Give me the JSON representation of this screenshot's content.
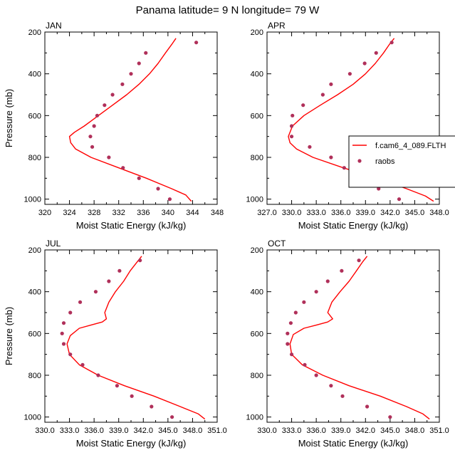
{
  "figure": {
    "title": "Panama  latitude= 9 N longitude= 79 W"
  },
  "colors": {
    "model_line": "#ff0000",
    "obs_marker": "#b0305a"
  },
  "legend": {
    "placement": "right-middle",
    "entries": [
      {
        "label": "f.cam6_4_089.FLTH",
        "kind": "line"
      },
      {
        "label": "raobs",
        "kind": "marker"
      }
    ]
  },
  "chart_data": [
    {
      "type": "line",
      "title": "JAN",
      "xlabel": "Moist Static Energy (kJ/kg)",
      "ylabel": "Pressure (mb)",
      "xlim": [
        320,
        348
      ],
      "ylim": [
        200,
        1025
      ],
      "y_reversed": true,
      "xticks": [
        320,
        322,
        324,
        326,
        328,
        330,
        332,
        334,
        336,
        338,
        340,
        342,
        344,
        346,
        348
      ],
      "xtick_labels": [
        "320",
        "",
        "324",
        "",
        "328",
        "",
        "332",
        "",
        "336",
        "",
        "340",
        "",
        "344",
        "",
        "348"
      ],
      "yticks": [
        200,
        400,
        600,
        800,
        1000
      ],
      "ytick_labels": [
        "200",
        "400",
        "600",
        "800",
        "1000"
      ],
      "series": [
        {
          "kind": "line",
          "points": [
            [
              341.3,
              230
            ],
            [
              340.6,
              260
            ],
            [
              339.6,
              300
            ],
            [
              338.4,
              350
            ],
            [
              337.0,
              400
            ],
            [
              335.3,
              450
            ],
            [
              333.3,
              500
            ],
            [
              331.0,
              550
            ],
            [
              328.7,
              600
            ],
            [
              326.4,
              650
            ],
            [
              324.8,
              680
            ],
            [
              324.0,
              700
            ],
            [
              324.2,
              730
            ],
            [
              325.0,
              760
            ],
            [
              327.5,
              800
            ],
            [
              332.0,
              850
            ],
            [
              336.5,
              900
            ],
            [
              340.6,
              950
            ],
            [
              342.9,
              980
            ],
            [
              343.8,
              1010
            ]
          ]
        },
        {
          "kind": "marker",
          "points": [
            [
              344.6,
              250
            ],
            [
              336.4,
              300
            ],
            [
              335.3,
              350
            ],
            [
              334.0,
              400
            ],
            [
              332.6,
              450
            ],
            [
              331.0,
              500
            ],
            [
              329.7,
              550
            ],
            [
              328.5,
              600
            ],
            [
              328.0,
              650
            ],
            [
              327.4,
              700
            ],
            [
              327.7,
              750
            ],
            [
              330.4,
              800
            ],
            [
              332.7,
              850
            ],
            [
              335.3,
              900
            ],
            [
              338.4,
              950
            ],
            [
              340.3,
              1000
            ]
          ]
        }
      ]
    },
    {
      "type": "line",
      "title": "APR",
      "xlabel": "Moist Static Energy (kJ/kg)",
      "ylabel": "Pressure (mb)",
      "xlim": [
        327,
        348
      ],
      "ylim": [
        200,
        1025
      ],
      "y_reversed": true,
      "xticks": [
        327,
        328.5,
        330,
        331.5,
        333,
        334.5,
        336,
        337.5,
        339,
        340.5,
        342,
        343.5,
        345,
        346.5,
        348
      ],
      "xtick_labels": [
        "327.0",
        "",
        "330.0",
        "",
        "333.0",
        "",
        "336.0",
        "",
        "339.0",
        "",
        "342.0",
        "",
        "345.0",
        "",
        "348.0"
      ],
      "yticks": [
        200,
        400,
        600,
        800,
        1000
      ],
      "ytick_labels": [
        "200",
        "400",
        "600",
        "800",
        "1000"
      ],
      "series": [
        {
          "kind": "line",
          "points": [
            [
              342.5,
              230
            ],
            [
              341.9,
              260
            ],
            [
              341.2,
              300
            ],
            [
              340.2,
              350
            ],
            [
              339.0,
              400
            ],
            [
              337.5,
              450
            ],
            [
              335.6,
              500
            ],
            [
              333.5,
              550
            ],
            [
              331.5,
              600
            ],
            [
              330.1,
              650
            ],
            [
              329.6,
              700
            ],
            [
              329.8,
              730
            ],
            [
              330.6,
              760
            ],
            [
              332.6,
              800
            ],
            [
              336.3,
              850
            ],
            [
              340.4,
              900
            ],
            [
              344.0,
              950
            ],
            [
              346.3,
              985
            ],
            [
              347.3,
              1010
            ]
          ]
        },
        {
          "kind": "marker",
          "points": [
            [
              342.2,
              250
            ],
            [
              340.3,
              300
            ],
            [
              338.9,
              350
            ],
            [
              337.1,
              400
            ],
            [
              334.8,
              450
            ],
            [
              333.8,
              500
            ],
            [
              331.4,
              550
            ],
            [
              330.1,
              600
            ],
            [
              330.0,
              650
            ],
            [
              330.0,
              700
            ],
            [
              332.2,
              750
            ],
            [
              334.8,
              800
            ],
            [
              336.4,
              850
            ],
            [
              338.4,
              900
            ],
            [
              340.6,
              950
            ],
            [
              343.1,
              1000
            ]
          ]
        }
      ]
    },
    {
      "type": "line",
      "title": "JUL",
      "xlabel": "Moist Static Energy (kJ/kg)",
      "ylabel": "Pressure (mb)",
      "xlim": [
        330,
        351
      ],
      "ylim": [
        200,
        1025
      ],
      "y_reversed": true,
      "xticks": [
        330,
        331.5,
        333,
        334.5,
        336,
        337.5,
        339,
        340.5,
        342,
        343.5,
        345,
        346.5,
        348,
        349.5,
        351
      ],
      "xtick_labels": [
        "330.0",
        "",
        "333.0",
        "",
        "336.0",
        "",
        "339.0",
        "",
        "342.0",
        "",
        "345.0",
        "",
        "348.0",
        "",
        "351.0"
      ],
      "yticks": [
        200,
        400,
        600,
        800,
        1000
      ],
      "ytick_labels": [
        "200",
        "400",
        "600",
        "800",
        "1000"
      ],
      "series": [
        {
          "kind": "line",
          "points": [
            [
              341.8,
              230
            ],
            [
              341.2,
              260
            ],
            [
              340.4,
              300
            ],
            [
              339.6,
              350
            ],
            [
              338.6,
              400
            ],
            [
              337.8,
              450
            ],
            [
              337.3,
              500
            ],
            [
              337.5,
              530
            ],
            [
              337.0,
              545
            ],
            [
              335.6,
              560
            ],
            [
              334.2,
              575
            ],
            [
              333.1,
              610
            ],
            [
              332.7,
              650
            ],
            [
              333.0,
              700
            ],
            [
              334.2,
              750
            ],
            [
              336.5,
              800
            ],
            [
              339.7,
              850
            ],
            [
              343.3,
              900
            ],
            [
              346.5,
              950
            ],
            [
              348.7,
              985
            ],
            [
              349.5,
              1010
            ]
          ]
        },
        {
          "kind": "marker",
          "points": [
            [
              341.6,
              250
            ],
            [
              339.1,
              300
            ],
            [
              337.8,
              350
            ],
            [
              336.2,
              400
            ],
            [
              334.3,
              450
            ],
            [
              333.1,
              500
            ],
            [
              332.3,
              550
            ],
            [
              332.1,
              600
            ],
            [
              332.3,
              650
            ],
            [
              333.1,
              700
            ],
            [
              334.6,
              750
            ],
            [
              336.5,
              800
            ],
            [
              338.8,
              850
            ],
            [
              340.6,
              900
            ],
            [
              343.0,
              950
            ],
            [
              345.5,
              1000
            ]
          ]
        }
      ]
    },
    {
      "type": "line",
      "title": "OCT",
      "xlabel": "Moist Static Energy (kJ/kg)",
      "ylabel": "Pressure (mb)",
      "xlim": [
        330,
        351
      ],
      "ylim": [
        200,
        1025
      ],
      "y_reversed": true,
      "xticks": [
        330,
        331.5,
        333,
        334.5,
        336,
        337.5,
        339,
        340.5,
        342,
        343.5,
        345,
        346.5,
        348,
        349.5,
        351
      ],
      "xtick_labels": [
        "330.0",
        "",
        "333.0",
        "",
        "336.0",
        "",
        "339.0",
        "",
        "342.0",
        "",
        "345.0",
        "",
        "348.0",
        "",
        "351.0"
      ],
      "yticks": [
        200,
        400,
        600,
        800,
        1000
      ],
      "ytick_labels": [
        "200",
        "400",
        "600",
        "800",
        "1000"
      ],
      "series": [
        {
          "kind": "line",
          "points": [
            [
              342.2,
              230
            ],
            [
              341.6,
              260
            ],
            [
              340.9,
              300
            ],
            [
              340.0,
              350
            ],
            [
              338.9,
              400
            ],
            [
              337.9,
              450
            ],
            [
              337.4,
              500
            ],
            [
              338.0,
              530
            ],
            [
              337.4,
              545
            ],
            [
              336.0,
              560
            ],
            [
              334.5,
              575
            ],
            [
              333.2,
              605
            ],
            [
              332.8,
              650
            ],
            [
              333.0,
              700
            ],
            [
              334.3,
              750
            ],
            [
              336.8,
              800
            ],
            [
              340.0,
              850
            ],
            [
              343.8,
              900
            ],
            [
              347.0,
              950
            ],
            [
              349.0,
              985
            ],
            [
              349.8,
              1010
            ]
          ]
        },
        {
          "kind": "marker",
          "points": [
            [
              341.2,
              250
            ],
            [
              339.1,
              300
            ],
            [
              337.4,
              350
            ],
            [
              336.0,
              400
            ],
            [
              334.5,
              450
            ],
            [
              333.5,
              500
            ],
            [
              332.9,
              550
            ],
            [
              332.5,
              600
            ],
            [
              332.5,
              650
            ],
            [
              333.0,
              700
            ],
            [
              334.6,
              750
            ],
            [
              336.0,
              800
            ],
            [
              337.8,
              850
            ],
            [
              339.2,
              900
            ],
            [
              342.2,
              950
            ],
            [
              345.0,
              1000
            ]
          ]
        }
      ]
    }
  ]
}
